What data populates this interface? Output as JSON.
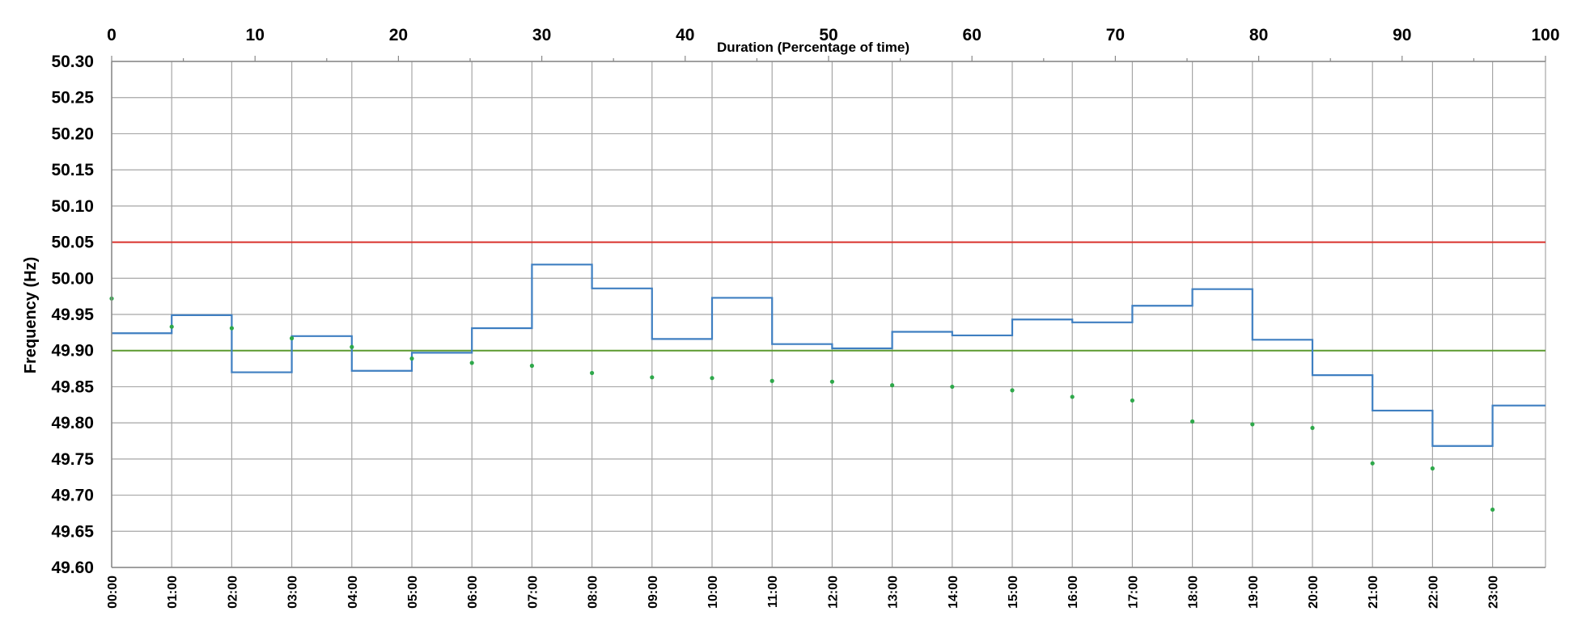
{
  "chart_data": {
    "type": "line",
    "title": "",
    "xlabel_top": "Duration (Percentage of time)",
    "ylabel": "Frequency (Hz)",
    "ylim": [
      49.6,
      50.3
    ],
    "y_ticks": [
      "50.30",
      "50.25",
      "50.20",
      "50.15",
      "50.10",
      "50.05",
      "50.00",
      "49.95",
      "49.90",
      "49.85",
      "49.80",
      "49.75",
      "49.70",
      "49.65",
      "49.60"
    ],
    "x_top_range": [
      0,
      100
    ],
    "x_top_ticks": [
      "0",
      "10",
      "20",
      "30",
      "40",
      "50",
      "60",
      "70",
      "80",
      "90",
      "100"
    ],
    "hours": [
      "00:00",
      "01:00",
      "02:00",
      "03:00",
      "04:00",
      "05:00",
      "06:00",
      "07:00",
      "08:00",
      "09:00",
      "10:00",
      "11:00",
      "12:00",
      "13:00",
      "14:00",
      "15:00",
      "16:00",
      "17:00",
      "18:00",
      "19:00",
      "20:00",
      "21:00",
      "22:00",
      "23:00"
    ],
    "reference_lines": [
      {
        "value": 50.05,
        "color": "#d9312b"
      },
      {
        "value": 49.9,
        "color": "#5b9a2f"
      }
    ],
    "series": [
      {
        "kind": "step",
        "color": "#3f7fc1",
        "values": [
          49.924,
          49.949,
          49.87,
          49.92,
          49.872,
          49.897,
          49.931,
          50.019,
          49.986,
          49.916,
          49.973,
          49.909,
          49.903,
          49.926,
          49.921,
          49.943,
          49.939,
          49.962,
          49.985,
          49.915,
          49.866,
          49.817,
          49.768,
          49.824
        ]
      },
      {
        "kind": "scatter",
        "color": "#2ea84a",
        "values": [
          49.972,
          49.933,
          49.931,
          49.917,
          49.905,
          49.889,
          49.883,
          49.879,
          49.869,
          49.863,
          49.862,
          49.858,
          49.857,
          49.852,
          49.85,
          49.845,
          49.836,
          49.831,
          49.802,
          49.798,
          49.793,
          49.744,
          49.737,
          49.68
        ]
      }
    ]
  }
}
